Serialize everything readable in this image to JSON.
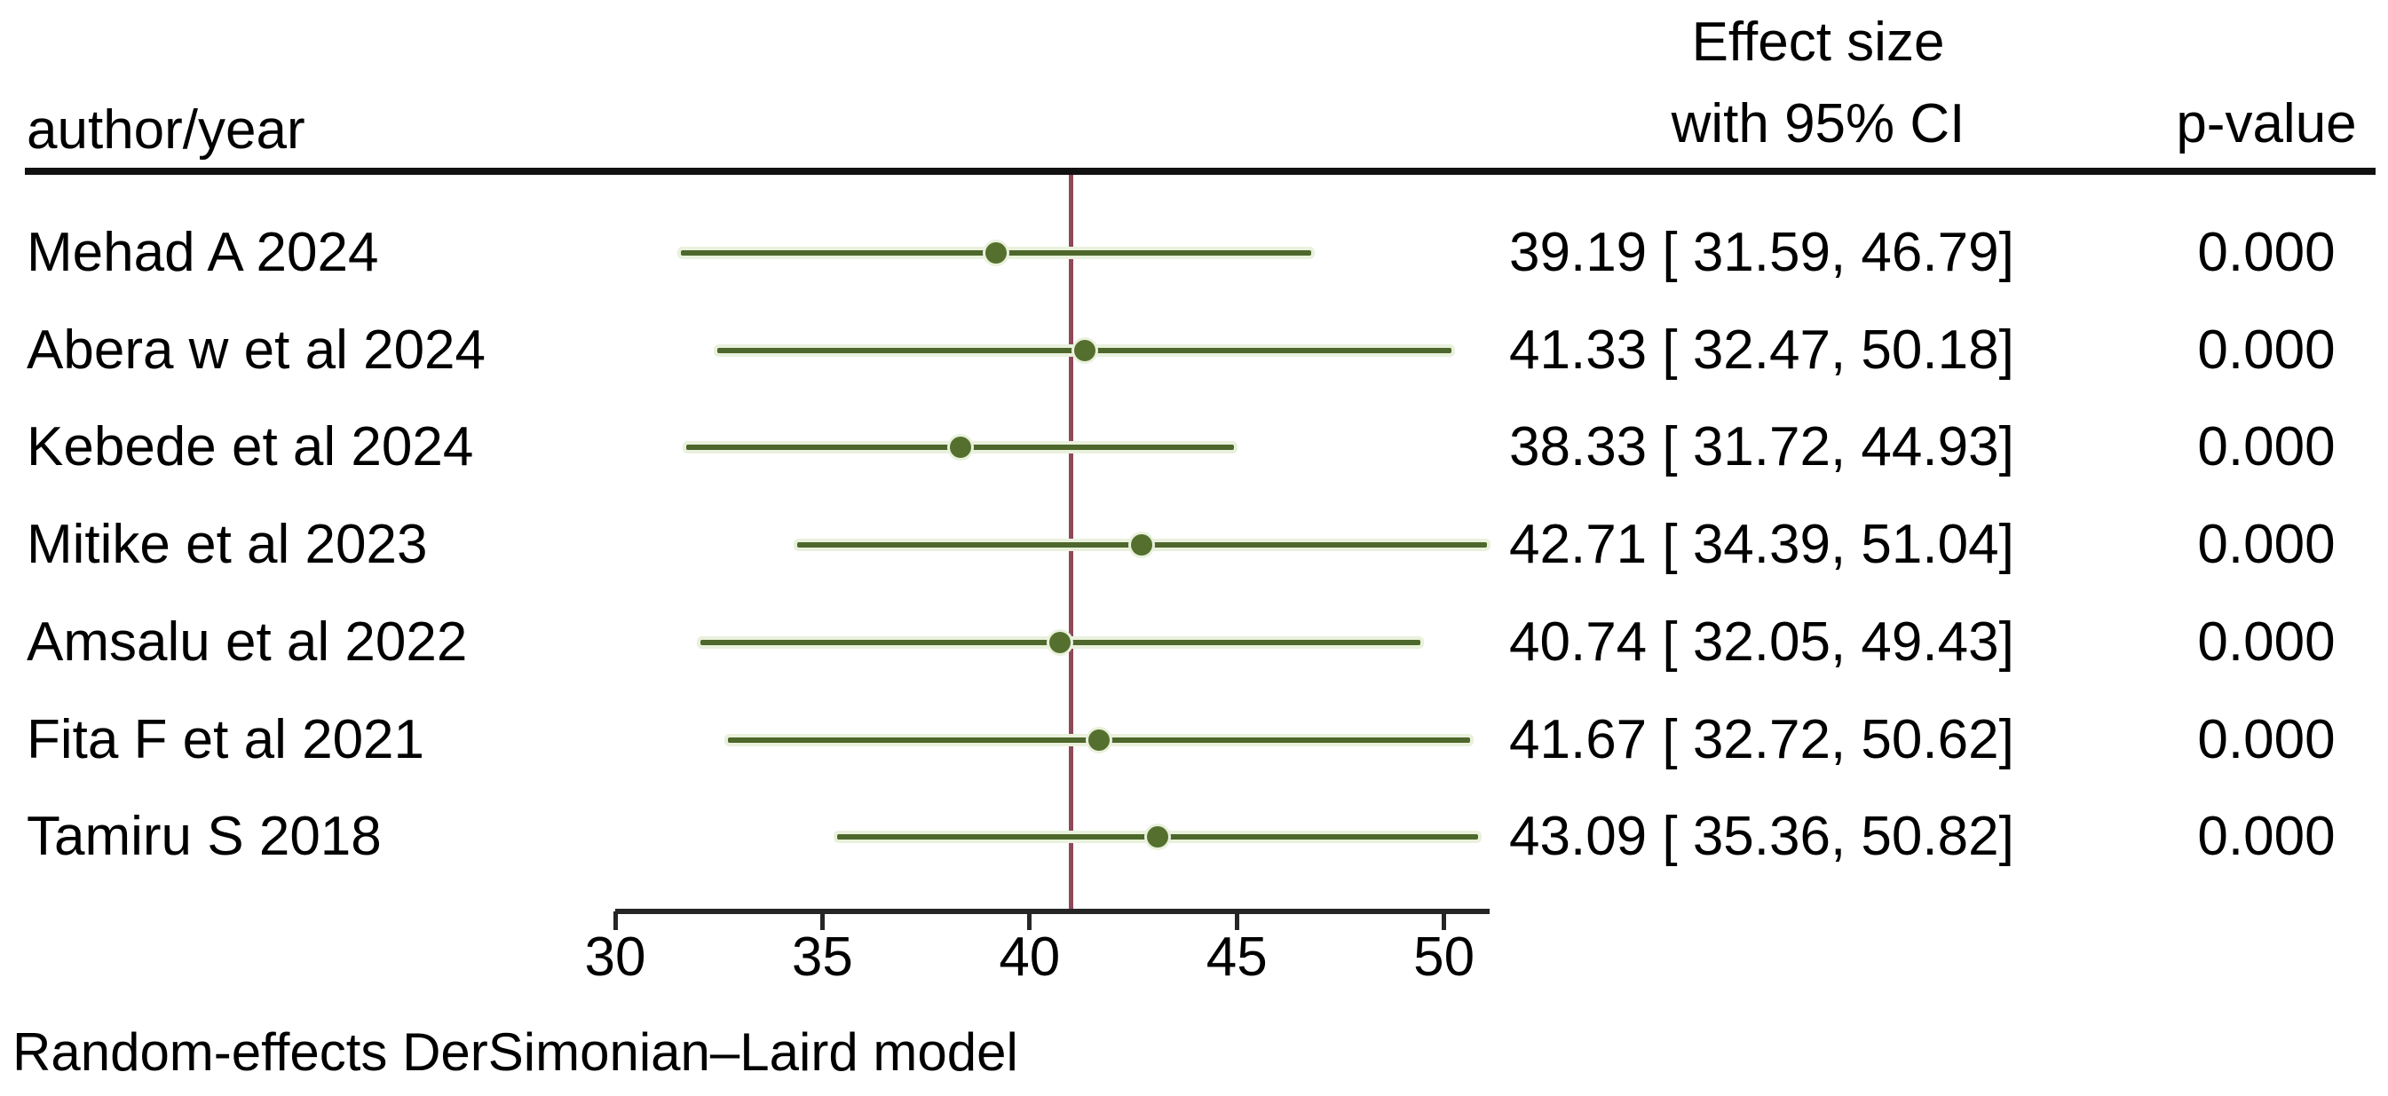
{
  "header": {
    "author_col": "author/year",
    "effect_line1": "Effect size",
    "effect_line2": "with 95% CI",
    "pvalue_col": "p-value"
  },
  "footer": {
    "note": "Random-effects DerSimonian–Laird model"
  },
  "colors": {
    "ci_line": "#4e672c",
    "marker": "#55702e",
    "halo": "#e9f1dd",
    "pooled_line": "#8e4a59",
    "axis": "#262626",
    "text": "#000000"
  },
  "chart_data": {
    "type": "forest",
    "xlabel": "",
    "x_axis": {
      "min": 30,
      "max": 51.1,
      "ticks": [
        30,
        35,
        40,
        45,
        50
      ]
    },
    "overall_line_value": 41.0,
    "grid": false,
    "studies": [
      {
        "name": "Mehad A 2024",
        "es": 39.19,
        "lcl": 31.59,
        "ucl": 46.79,
        "es_label": "39.19 [ 31.59, 46.79]",
        "p": "0.000"
      },
      {
        "name": "Abera w et al 2024",
        "es": 41.33,
        "lcl": 32.47,
        "ucl": 50.18,
        "es_label": "41.33 [ 32.47, 50.18]",
        "p": "0.000"
      },
      {
        "name": "Kebede et al 2024",
        "es": 38.33,
        "lcl": 31.72,
        "ucl": 44.93,
        "es_label": "38.33 [ 31.72, 44.93]",
        "p": "0.000"
      },
      {
        "name": "Mitike et al 2023",
        "es": 42.71,
        "lcl": 34.39,
        "ucl": 51.04,
        "es_label": "42.71 [ 34.39, 51.04]",
        "p": "0.000"
      },
      {
        "name": "Amsalu et al 2022",
        "es": 40.74,
        "lcl": 32.05,
        "ucl": 49.43,
        "es_label": "40.74 [ 32.05, 49.43]",
        "p": "0.000"
      },
      {
        "name": "Fita F et al 2021",
        "es": 41.67,
        "lcl": 32.72,
        "ucl": 50.62,
        "es_label": "41.67 [ 32.72, 50.62]",
        "p": "0.000"
      },
      {
        "name": "Tamiru S 2018",
        "es": 43.09,
        "lcl": 35.36,
        "ucl": 50.82,
        "es_label": "43.09 [ 35.36, 50.82]",
        "p": "0.000"
      }
    ]
  }
}
